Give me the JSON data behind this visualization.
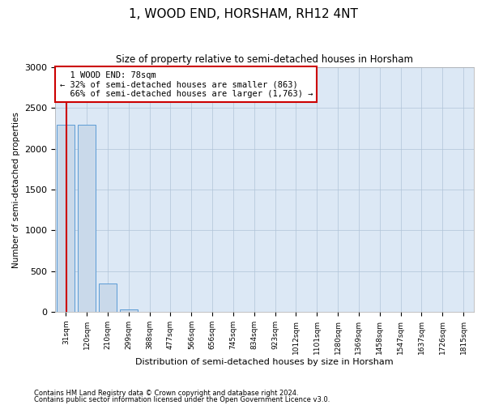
{
  "title": "1, WOOD END, HORSHAM, RH12 4NT",
  "subtitle": "Size of property relative to semi-detached houses in Horsham",
  "xlabel": "Distribution of semi-detached houses by size in Horsham",
  "ylabel": "Number of semi-detached properties",
  "bar_labels": [
    "31sqm",
    "120sqm",
    "210sqm",
    "299sqm",
    "388sqm",
    "477sqm",
    "566sqm",
    "656sqm",
    "745sqm",
    "834sqm",
    "923sqm",
    "1012sqm",
    "1101sqm",
    "1280sqm",
    "1369sqm",
    "1458sqm",
    "1547sqm",
    "1637sqm",
    "1726sqm",
    "1815sqm"
  ],
  "bar_heights": [
    2300,
    2300,
    350,
    35,
    5,
    2,
    1,
    1,
    1,
    1,
    1,
    0,
    0,
    0,
    0,
    0,
    0,
    0,
    0,
    0
  ],
  "bar_color": "#c9d9ea",
  "bar_edge_color": "#5b9bd5",
  "bg_color": "#dce8f5",
  "pct_smaller": 32,
  "n_smaller": 863,
  "pct_larger": 66,
  "n_larger": 1763,
  "red_line_color": "#cc0000",
  "ylim": [
    0,
    3000
  ],
  "yticks": [
    0,
    500,
    1000,
    1500,
    2000,
    2500,
    3000
  ],
  "grid_color": "#b0c4d8",
  "background_color": "#ffffff",
  "footnote1": "Contains HM Land Registry data © Crown copyright and database right 2024.",
  "footnote2": "Contains public sector information licensed under the Open Government Licence v3.0."
}
